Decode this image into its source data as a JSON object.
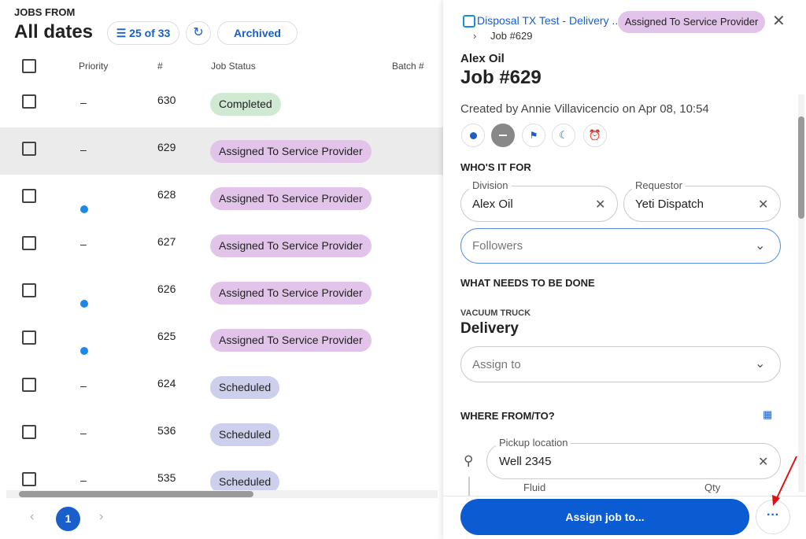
{
  "header": {
    "eyebrow": "JOBS FROM",
    "title": "All dates",
    "count": "25 of 33",
    "archived": "Archived"
  },
  "table": {
    "columns": [
      "Priority",
      "#",
      "Job Status",
      "Batch #"
    ],
    "rows": [
      {
        "priority": "–",
        "number": "630",
        "status": "Completed",
        "status_color": "#cfe9d3"
      },
      {
        "priority": "–",
        "number": "629",
        "status": "Assigned To Service Provider",
        "status_color": "#e2c3ea",
        "selected": true
      },
      {
        "high_priority": true,
        "number": "628",
        "status": "Assigned To Service Provider",
        "status_color": "#e2c3ea"
      },
      {
        "priority": "–",
        "number": "627",
        "status": "Assigned To Service Provider",
        "status_color": "#e2c3ea"
      },
      {
        "high_priority": true,
        "number": "626",
        "status": "Assigned To Service Provider",
        "status_color": "#e2c3ea"
      },
      {
        "high_priority": true,
        "number": "625",
        "status": "Assigned To Service Provider",
        "status_color": "#e2c3ea"
      },
      {
        "priority": "–",
        "number": "624",
        "status": "Scheduled",
        "status_color": "#cdd0ec"
      },
      {
        "priority": "–",
        "number": "536",
        "status": "Scheduled",
        "status_color": "#cdd0ec"
      },
      {
        "priority": "–",
        "number": "535",
        "status": "Scheduled",
        "status_color": "#cdd0ec"
      }
    ]
  },
  "pagination": {
    "page": "1"
  },
  "panel": {
    "breadcrumb": "Disposal TX Test - Delivery ...",
    "sub_crumb": "Job #629",
    "badge": "Assigned To Service Provider",
    "company": "Alex Oil",
    "title": "Job #629",
    "created": "Created by Annie Villavicencio on Apr 08, 10:54",
    "who_heading": "WHO'S IT FOR",
    "division_label": "Division",
    "division": "Alex Oil",
    "requestor_label": "Requestor",
    "requestor": "Yeti Dispatch",
    "followers": "Followers",
    "what_heading": "WHAT NEEDS TO BE DONE",
    "service_type": "VACUUM TRUCK",
    "service": "Delivery",
    "assign_to": "Assign to",
    "where_heading": "WHERE FROM/TO?",
    "pickup_label": "Pickup location",
    "pickup": "Well 2345",
    "fluid_label": "Fluid",
    "qty_label": "Qty",
    "assign_button": "Assign job to..."
  }
}
